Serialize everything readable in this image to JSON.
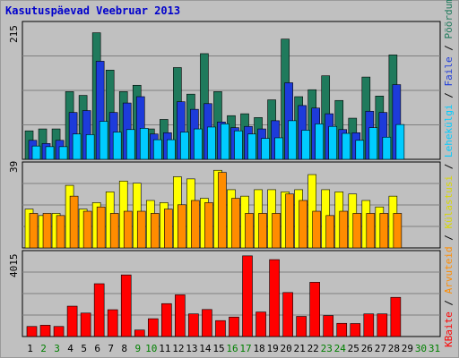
{
  "title": "Kasutuspäevad Veebruar 2013",
  "chart_data": [
    {
      "type": "bar",
      "panel": "top",
      "ymax_label": "215",
      "ylim": [
        0,
        215
      ],
      "categories": [
        "1",
        "2",
        "3",
        "4",
        "5",
        "6",
        "7",
        "8",
        "9",
        "10",
        "11",
        "12",
        "13",
        "14",
        "15",
        "16",
        "17",
        "18",
        "19",
        "20",
        "21",
        "22",
        "23",
        "24",
        "25",
        "26",
        "27",
        "28",
        "29",
        "30",
        "31"
      ],
      "series": [
        {
          "name": "Pöördumisi",
          "color": "#1f7a5c",
          "values": [
            45,
            48,
            48,
            107,
            101,
            200,
            141,
            107,
            117,
            48,
            63,
            145,
            103,
            167,
            107,
            69,
            72,
            66,
            94,
            190,
            99,
            110,
            132,
            93,
            65,
            130,
            100,
            165,
            0,
            0,
            0
          ]
        },
        {
          "name": "Faile",
          "color": "#1d3bdb",
          "values": [
            30,
            25,
            30,
            74,
            77,
            155,
            74,
            89,
            99,
            40,
            42,
            91,
            79,
            88,
            59,
            50,
            52,
            48,
            61,
            121,
            85,
            81,
            72,
            47,
            42,
            76,
            74,
            118,
            0,
            0,
            0
          ]
        },
        {
          "name": "Lehekülgi",
          "color": "#00ccff",
          "values": [
            21,
            20,
            20,
            40,
            39,
            60,
            43,
            47,
            49,
            31,
            31,
            43,
            48,
            51,
            56,
            45,
            40,
            33,
            34,
            61,
            46,
            56,
            52,
            41,
            30,
            50,
            35,
            55,
            0,
            0,
            0
          ]
        }
      ]
    },
    {
      "type": "bar",
      "panel": "middle",
      "ymax_label": "39",
      "ylim": [
        0,
        39
      ],
      "categories": [
        "1",
        "2",
        "3",
        "4",
        "5",
        "6",
        "7",
        "8",
        "9",
        "10",
        "11",
        "12",
        "13",
        "14",
        "15",
        "16",
        "17",
        "18",
        "19",
        "20",
        "21",
        "22",
        "23",
        "24",
        "25",
        "26",
        "27",
        "28",
        "29",
        "30",
        "31"
      ],
      "series": [
        {
          "name": "Külastusi",
          "color": "#ffff00",
          "values": [
            18,
            15,
            16,
            29,
            18,
            21,
            26,
            31,
            30,
            22,
            21,
            33,
            32,
            23,
            36,
            27,
            24,
            27,
            27,
            26,
            27,
            34,
            27,
            26,
            25,
            22,
            19,
            24,
            0,
            0,
            0
          ]
        },
        {
          "name": "Arvuteid",
          "color": "#ff8c00",
          "values": [
            16,
            16,
            15,
            24,
            17,
            19,
            16,
            17,
            17,
            16,
            18,
            20,
            22,
            21,
            35,
            23,
            16,
            16,
            16,
            25,
            22,
            17,
            15,
            17,
            16,
            16,
            16,
            16,
            0,
            0,
            0
          ]
        }
      ]
    },
    {
      "type": "bar",
      "panel": "bottom",
      "ymax_label": "4015",
      "ylim": [
        0,
        4015
      ],
      "categories": [
        "1",
        "2",
        "3",
        "4",
        "5",
        "6",
        "7",
        "8",
        "9",
        "10",
        "11",
        "12",
        "13",
        "14",
        "15",
        "16",
        "17",
        "18",
        "19",
        "20",
        "21",
        "22",
        "23",
        "24",
        "25",
        "26",
        "27",
        "28",
        "29",
        "30",
        "31"
      ],
      "series": [
        {
          "name": "KBaite",
          "color": "#ff0000",
          "values": [
            480,
            540,
            480,
            1450,
            1120,
            2520,
            1280,
            2940,
            310,
            850,
            1570,
            1990,
            1080,
            1290,
            760,
            930,
            3850,
            1170,
            3670,
            2100,
            960,
            2590,
            1000,
            630,
            620,
            1080,
            1080,
            1870,
            0,
            0,
            0
          ]
        }
      ]
    }
  ],
  "legend": {
    "items": [
      {
        "label": "KBaite",
        "color": "#ff0000"
      },
      {
        "label": "Arvuteid",
        "color": "#ff8c00"
      },
      {
        "label": "Külastusi",
        "color": "#d8d800"
      },
      {
        "label": "Lehekülgi",
        "color": "#00ccff"
      },
      {
        "label": "Faile",
        "color": "#1d3bdb"
      },
      {
        "label": "Pöördumisi",
        "color": "#1f7a5c"
      }
    ],
    "separator": " / "
  },
  "x_axis": {
    "days": [
      "1",
      "2",
      "3",
      "4",
      "5",
      "6",
      "7",
      "8",
      "9",
      "10",
      "11",
      "12",
      "13",
      "14",
      "15",
      "16",
      "17",
      "18",
      "19",
      "20",
      "21",
      "22",
      "23",
      "24",
      "25",
      "26",
      "27",
      "28",
      "29",
      "30",
      "31"
    ],
    "weekend_days": [
      "2",
      "3",
      "9",
      "10",
      "16",
      "17",
      "23",
      "24",
      "30",
      "31"
    ],
    "weekday_color": "#000000",
    "weekend_color": "#008000"
  }
}
